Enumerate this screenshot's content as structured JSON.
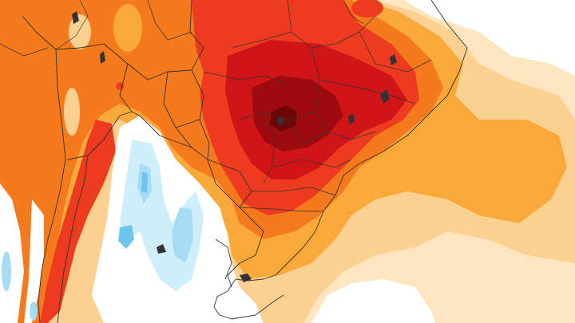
{
  "map": {
    "kind": "temperature-anomaly-map",
    "region": "South America",
    "colors": {
      "background": "#ffffff",
      "pale_cream": "#fde6bf",
      "light_orange": "#fcd090",
      "orange": "#f9a93a",
      "orange_red": "#f5791d",
      "red": "#ec3b1f",
      "deep_red": "#cf1518",
      "dark_red": "#9e0b0e",
      "core_red": "#6e0608",
      "pale_blue": "#cdeefa",
      "light_blue": "#a6dcf4",
      "blue": "#6ec6ee",
      "borders": "#333333"
    },
    "icon_names": [
      "country-borders",
      "state-borders",
      "coastline"
    ]
  }
}
